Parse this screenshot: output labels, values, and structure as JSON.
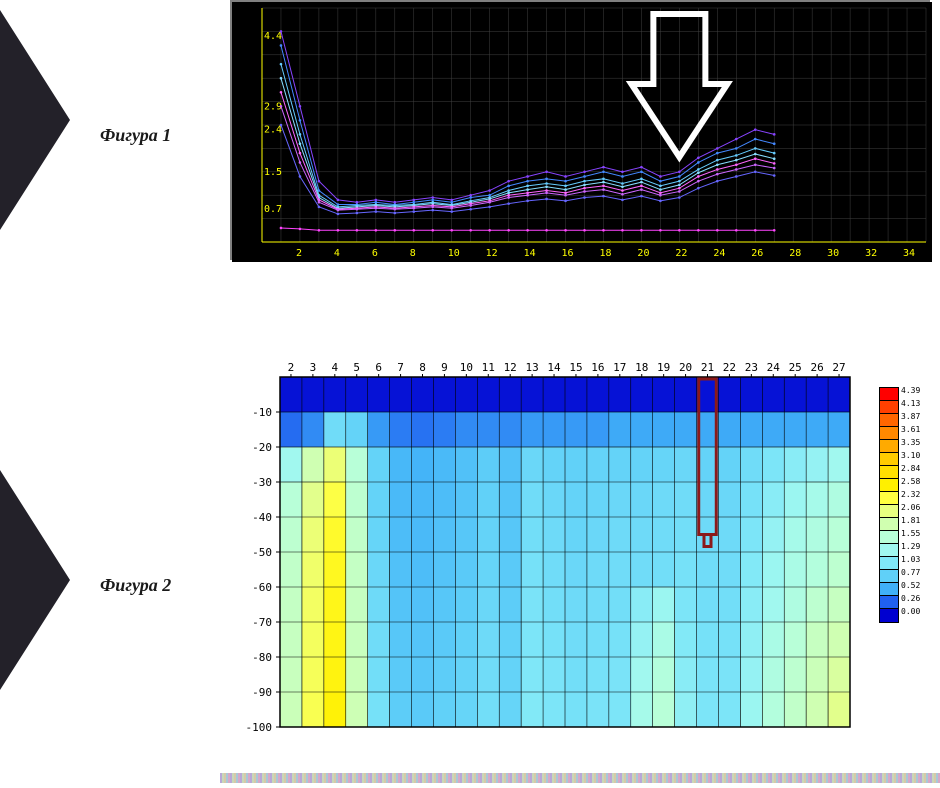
{
  "labels": {
    "fig1": "Фигура 1",
    "fig2": "Фигура 2"
  },
  "deco": {
    "fill": "#232129"
  },
  "figure1": {
    "type": "line",
    "bg": "#000000",
    "border": "#808080",
    "grid_color": "#404040",
    "axis_color": "#ffff00",
    "x": {
      "min": 0,
      "max": 35,
      "ticks": [
        2,
        4,
        6,
        8,
        10,
        12,
        14,
        16,
        18,
        20,
        22,
        24,
        26,
        28,
        30,
        32,
        34
      ]
    },
    "y": {
      "min": 0,
      "max": 5,
      "ticks": [
        0.7,
        1.5,
        2.4,
        2.9,
        4.4
      ]
    },
    "arrow": {
      "x": 22,
      "color": "#ffffff"
    },
    "series": [
      {
        "color": "#8844ff",
        "w": 1,
        "pts": [
          [
            1,
            4.5
          ],
          [
            2,
            2.9
          ],
          [
            3,
            1.3
          ],
          [
            4,
            0.9
          ],
          [
            5,
            0.85
          ],
          [
            6,
            0.9
          ],
          [
            7,
            0.85
          ],
          [
            8,
            0.9
          ],
          [
            9,
            0.95
          ],
          [
            10,
            0.9
          ],
          [
            11,
            1.0
          ],
          [
            12,
            1.1
          ],
          [
            13,
            1.3
          ],
          [
            14,
            1.4
          ],
          [
            15,
            1.5
          ],
          [
            16,
            1.4
          ],
          [
            17,
            1.5
          ],
          [
            18,
            1.6
          ],
          [
            19,
            1.5
          ],
          [
            20,
            1.6
          ],
          [
            21,
            1.4
          ],
          [
            22,
            1.5
          ],
          [
            23,
            1.8
          ],
          [
            24,
            2.0
          ],
          [
            25,
            2.2
          ],
          [
            26,
            2.4
          ],
          [
            27,
            2.3
          ]
        ]
      },
      {
        "color": "#4488ff",
        "w": 1,
        "pts": [
          [
            1,
            4.2
          ],
          [
            2,
            2.6
          ],
          [
            3,
            1.1
          ],
          [
            4,
            0.8
          ],
          [
            5,
            0.8
          ],
          [
            6,
            0.85
          ],
          [
            7,
            0.8
          ],
          [
            8,
            0.85
          ],
          [
            9,
            0.9
          ],
          [
            10,
            0.85
          ],
          [
            11,
            0.95
          ],
          [
            12,
            1.0
          ],
          [
            13,
            1.2
          ],
          [
            14,
            1.3
          ],
          [
            15,
            1.35
          ],
          [
            16,
            1.3
          ],
          [
            17,
            1.4
          ],
          [
            18,
            1.5
          ],
          [
            19,
            1.4
          ],
          [
            20,
            1.5
          ],
          [
            21,
            1.3
          ],
          [
            22,
            1.4
          ],
          [
            23,
            1.7
          ],
          [
            24,
            1.9
          ],
          [
            25,
            2.0
          ],
          [
            26,
            2.2
          ],
          [
            27,
            2.1
          ]
        ]
      },
      {
        "color": "#66ccff",
        "w": 1,
        "pts": [
          [
            1,
            3.8
          ],
          [
            2,
            2.3
          ],
          [
            3,
            1.0
          ],
          [
            4,
            0.75
          ],
          [
            5,
            0.78
          ],
          [
            6,
            0.8
          ],
          [
            7,
            0.78
          ],
          [
            8,
            0.8
          ],
          [
            9,
            0.85
          ],
          [
            10,
            0.8
          ],
          [
            11,
            0.88
          ],
          [
            12,
            0.95
          ],
          [
            13,
            1.1
          ],
          [
            14,
            1.2
          ],
          [
            15,
            1.25
          ],
          [
            16,
            1.2
          ],
          [
            17,
            1.3
          ],
          [
            18,
            1.35
          ],
          [
            19,
            1.25
          ],
          [
            20,
            1.35
          ],
          [
            21,
            1.2
          ],
          [
            22,
            1.3
          ],
          [
            23,
            1.55
          ],
          [
            24,
            1.75
          ],
          [
            25,
            1.85
          ],
          [
            26,
            2.0
          ],
          [
            27,
            1.9
          ]
        ]
      },
      {
        "color": "#88ddff",
        "w": 1,
        "pts": [
          [
            1,
            3.5
          ],
          [
            2,
            2.1
          ],
          [
            3,
            0.95
          ],
          [
            4,
            0.72
          ],
          [
            5,
            0.75
          ],
          [
            6,
            0.78
          ],
          [
            7,
            0.75
          ],
          [
            8,
            0.78
          ],
          [
            9,
            0.82
          ],
          [
            10,
            0.78
          ],
          [
            11,
            0.85
          ],
          [
            12,
            0.92
          ],
          [
            13,
            1.05
          ],
          [
            14,
            1.12
          ],
          [
            15,
            1.18
          ],
          [
            16,
            1.12
          ],
          [
            17,
            1.22
          ],
          [
            18,
            1.28
          ],
          [
            19,
            1.18
          ],
          [
            20,
            1.28
          ],
          [
            21,
            1.12
          ],
          [
            22,
            1.22
          ],
          [
            23,
            1.48
          ],
          [
            24,
            1.65
          ],
          [
            25,
            1.75
          ],
          [
            26,
            1.88
          ],
          [
            27,
            1.78
          ]
        ]
      },
      {
        "color": "#ff66ff",
        "w": 1,
        "pts": [
          [
            1,
            3.2
          ],
          [
            2,
            1.9
          ],
          [
            3,
            0.9
          ],
          [
            4,
            0.7
          ],
          [
            5,
            0.72
          ],
          [
            6,
            0.75
          ],
          [
            7,
            0.72
          ],
          [
            8,
            0.75
          ],
          [
            9,
            0.78
          ],
          [
            10,
            0.75
          ],
          [
            11,
            0.82
          ],
          [
            12,
            0.88
          ],
          [
            13,
            1.0
          ],
          [
            14,
            1.05
          ],
          [
            15,
            1.1
          ],
          [
            16,
            1.05
          ],
          [
            17,
            1.15
          ],
          [
            18,
            1.2
          ],
          [
            19,
            1.1
          ],
          [
            20,
            1.2
          ],
          [
            21,
            1.05
          ],
          [
            22,
            1.15
          ],
          [
            23,
            1.4
          ],
          [
            24,
            1.55
          ],
          [
            25,
            1.65
          ],
          [
            26,
            1.78
          ],
          [
            27,
            1.68
          ]
        ]
      },
      {
        "color": "#cc66ff",
        "w": 1,
        "pts": [
          [
            1,
            2.9
          ],
          [
            2,
            1.7
          ],
          [
            3,
            0.85
          ],
          [
            4,
            0.68
          ],
          [
            5,
            0.7
          ],
          [
            6,
            0.72
          ],
          [
            7,
            0.7
          ],
          [
            8,
            0.72
          ],
          [
            9,
            0.75
          ],
          [
            10,
            0.72
          ],
          [
            11,
            0.78
          ],
          [
            12,
            0.85
          ],
          [
            13,
            0.95
          ],
          [
            14,
            1.0
          ],
          [
            15,
            1.05
          ],
          [
            16,
            1.0
          ],
          [
            17,
            1.08
          ],
          [
            18,
            1.12
          ],
          [
            19,
            1.02
          ],
          [
            20,
            1.12
          ],
          [
            21,
            1.0
          ],
          [
            22,
            1.08
          ],
          [
            23,
            1.3
          ],
          [
            24,
            1.45
          ],
          [
            25,
            1.55
          ],
          [
            26,
            1.65
          ],
          [
            27,
            1.58
          ]
        ]
      },
      {
        "color": "#6666ff",
        "w": 1,
        "pts": [
          [
            1,
            2.5
          ],
          [
            2,
            1.4
          ],
          [
            3,
            0.75
          ],
          [
            4,
            0.6
          ],
          [
            5,
            0.62
          ],
          [
            6,
            0.65
          ],
          [
            7,
            0.62
          ],
          [
            8,
            0.65
          ],
          [
            9,
            0.68
          ],
          [
            10,
            0.65
          ],
          [
            11,
            0.7
          ],
          [
            12,
            0.75
          ],
          [
            13,
            0.82
          ],
          [
            14,
            0.88
          ],
          [
            15,
            0.92
          ],
          [
            16,
            0.88
          ],
          [
            17,
            0.95
          ],
          [
            18,
            0.98
          ],
          [
            19,
            0.9
          ],
          [
            20,
            0.98
          ],
          [
            21,
            0.88
          ],
          [
            22,
            0.95
          ],
          [
            23,
            1.15
          ],
          [
            24,
            1.3
          ],
          [
            25,
            1.4
          ],
          [
            26,
            1.5
          ],
          [
            27,
            1.42
          ]
        ]
      },
      {
        "color": "#ff44ff",
        "w": 1,
        "pts": [
          [
            1,
            0.3
          ],
          [
            2,
            0.28
          ],
          [
            3,
            0.25
          ],
          [
            4,
            0.25
          ],
          [
            5,
            0.25
          ],
          [
            6,
            0.25
          ],
          [
            7,
            0.25
          ],
          [
            8,
            0.25
          ],
          [
            9,
            0.25
          ],
          [
            10,
            0.25
          ],
          [
            11,
            0.25
          ],
          [
            12,
            0.25
          ],
          [
            13,
            0.25
          ],
          [
            14,
            0.25
          ],
          [
            15,
            0.25
          ],
          [
            16,
            0.25
          ],
          [
            17,
            0.25
          ],
          [
            18,
            0.25
          ],
          [
            19,
            0.25
          ],
          [
            20,
            0.25
          ],
          [
            21,
            0.25
          ],
          [
            22,
            0.25
          ],
          [
            23,
            0.25
          ],
          [
            24,
            0.25
          ],
          [
            25,
            0.25
          ],
          [
            26,
            0.25
          ],
          [
            27,
            0.25
          ]
        ]
      }
    ]
  },
  "figure2": {
    "type": "heatmap",
    "grid_color": "#000000",
    "axis_font": "11px monospace",
    "x": {
      "ticks": [
        2,
        3,
        4,
        5,
        6,
        7,
        8,
        9,
        10,
        11,
        12,
        13,
        14,
        15,
        16,
        17,
        18,
        19,
        20,
        21,
        22,
        23,
        24,
        25,
        26,
        27
      ]
    },
    "y": {
      "ticks": [
        -10,
        -20,
        -30,
        -40,
        -50,
        -60,
        -70,
        -80,
        -90,
        -100
      ]
    },
    "marker": {
      "col": 21,
      "depth_from": 0,
      "depth_to": -45,
      "color": "#8b1a1a",
      "width": 3
    },
    "legend": {
      "steps": [
        {
          "v": "4.39",
          "c": "#ff0000"
        },
        {
          "v": "4.13",
          "c": "#ff4000"
        },
        {
          "v": "3.87",
          "c": "#ff6600"
        },
        {
          "v": "3.61",
          "c": "#ff8800"
        },
        {
          "v": "3.35",
          "c": "#ffaa00"
        },
        {
          "v": "3.10",
          "c": "#ffcc00"
        },
        {
          "v": "2.84",
          "c": "#ffe000"
        },
        {
          "v": "2.58",
          "c": "#fff000"
        },
        {
          "v": "2.32",
          "c": "#ffff40"
        },
        {
          "v": "2.06",
          "c": "#e8ff80"
        },
        {
          "v": "1.81",
          "c": "#d0ffb0"
        },
        {
          "v": "1.55",
          "c": "#b8ffd8"
        },
        {
          "v": "1.29",
          "c": "#a0f8f0"
        },
        {
          "v": "1.03",
          "c": "#80e8f8"
        },
        {
          "v": "0.77",
          "c": "#60d0f8"
        },
        {
          "v": "0.52",
          "c": "#40b0f8"
        },
        {
          "v": "0.26",
          "c": "#2060f0"
        },
        {
          "v": "0.00",
          "c": "#0000d0"
        }
      ]
    },
    "cols": 26,
    "rows": 10,
    "cells": [
      [
        0.05,
        0.05,
        0.05,
        0.05,
        0.05,
        0.05,
        0.05,
        0.05,
        0.05,
        0.05,
        0.05,
        0.05,
        0.05,
        0.05,
        0.05,
        0.05,
        0.05,
        0.05,
        0.05,
        0.05,
        0.05,
        0.05,
        0.05,
        0.05,
        0.05,
        0.05
      ],
      [
        0.3,
        0.4,
        0.9,
        0.8,
        0.45,
        0.35,
        0.32,
        0.35,
        0.4,
        0.4,
        0.4,
        0.45,
        0.45,
        0.45,
        0.45,
        0.5,
        0.5,
        0.5,
        0.5,
        0.5,
        0.5,
        0.5,
        0.5,
        0.5,
        0.5,
        0.5
      ],
      [
        1.3,
        1.8,
        2.1,
        1.55,
        0.8,
        0.58,
        0.55,
        0.6,
        0.65,
        0.75,
        0.65,
        0.85,
        0.8,
        0.78,
        0.8,
        0.8,
        0.8,
        0.82,
        0.85,
        0.8,
        0.8,
        0.9,
        1.0,
        1.1,
        1.2,
        1.3
      ],
      [
        1.55,
        2.0,
        2.3,
        1.6,
        0.8,
        0.6,
        0.58,
        0.62,
        0.68,
        0.78,
        0.68,
        0.9,
        0.85,
        0.8,
        0.82,
        0.85,
        0.85,
        0.88,
        0.9,
        0.85,
        0.85,
        0.95,
        1.1,
        1.25,
        1.35,
        1.45
      ],
      [
        1.6,
        2.1,
        2.4,
        1.65,
        0.82,
        0.62,
        0.6,
        0.65,
        0.7,
        0.8,
        0.7,
        0.92,
        0.88,
        0.82,
        0.85,
        0.88,
        0.88,
        0.9,
        0.92,
        0.88,
        0.88,
        1.0,
        1.2,
        1.35,
        1.45,
        1.55
      ],
      [
        1.65,
        2.15,
        2.45,
        1.68,
        0.85,
        0.65,
        0.62,
        0.68,
        0.72,
        0.82,
        0.72,
        0.95,
        0.9,
        0.85,
        0.88,
        0.9,
        0.9,
        0.92,
        0.95,
        0.9,
        0.9,
        1.05,
        1.25,
        1.4,
        1.5,
        1.6
      ],
      [
        1.68,
        2.18,
        2.48,
        1.7,
        0.88,
        0.68,
        0.65,
        0.7,
        0.75,
        0.85,
        0.75,
        0.98,
        0.92,
        0.88,
        0.9,
        0.92,
        1.1,
        1.25,
        1.0,
        0.92,
        0.92,
        1.1,
        1.3,
        1.45,
        1.6,
        1.7
      ],
      [
        1.7,
        2.2,
        2.5,
        1.72,
        0.9,
        0.7,
        0.68,
        0.72,
        0.78,
        0.88,
        0.78,
        1.0,
        0.95,
        0.9,
        0.92,
        0.95,
        1.2,
        1.4,
        1.05,
        0.95,
        0.95,
        1.15,
        1.4,
        1.55,
        1.7,
        1.8
      ],
      [
        1.72,
        2.22,
        2.52,
        1.75,
        0.92,
        0.72,
        0.7,
        0.75,
        0.8,
        0.9,
        0.8,
        1.02,
        0.98,
        0.92,
        0.95,
        0.98,
        1.3,
        1.5,
        1.1,
        0.98,
        0.98,
        1.2,
        1.45,
        1.6,
        1.75,
        1.9
      ],
      [
        1.75,
        2.25,
        2.55,
        1.78,
        0.95,
        0.75,
        0.72,
        0.78,
        0.82,
        0.92,
        0.82,
        1.05,
        1.0,
        0.95,
        0.98,
        1.0,
        1.35,
        1.55,
        1.15,
        1.0,
        1.0,
        1.25,
        1.5,
        1.65,
        1.8,
        2.0
      ]
    ]
  }
}
